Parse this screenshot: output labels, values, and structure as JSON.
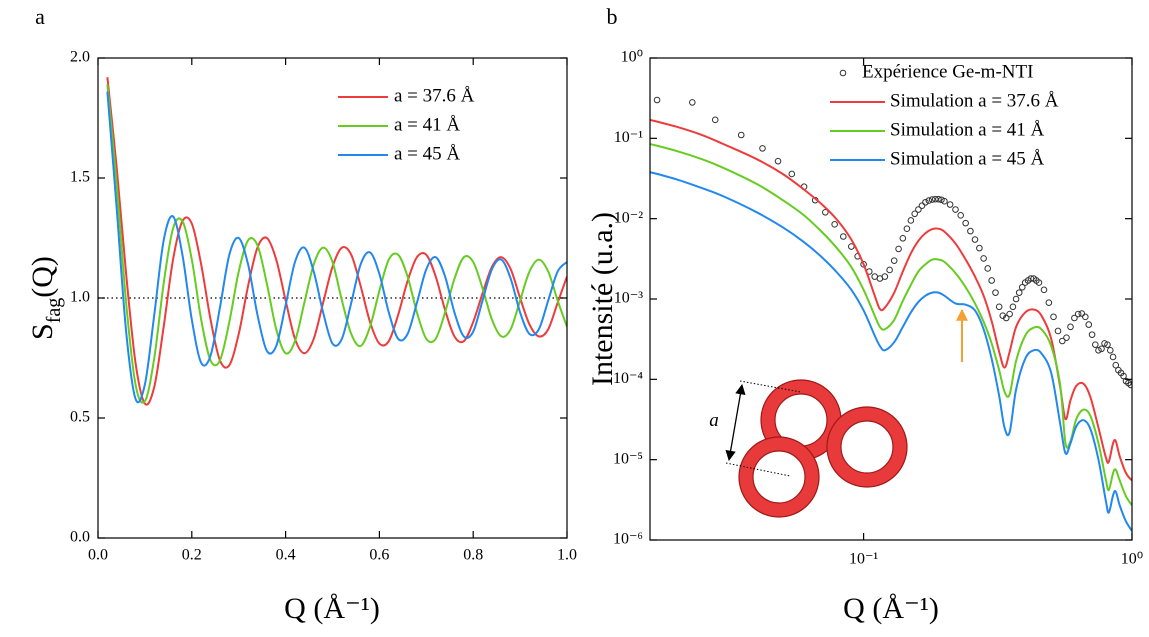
{
  "chart_data": [
    {
      "type": "line",
      "panel_label": "a",
      "ylabel": "S",
      "ylabel_sub": "fag",
      "ylabel_end": "(Q)",
      "xlabel": "Q (Å⁻¹)",
      "xlim": [
        0,
        1
      ],
      "ylim": [
        0,
        2
      ],
      "xticks": [
        {
          "value": 0,
          "label": "0.0"
        },
        {
          "value": 0.2,
          "label": "0.2"
        },
        {
          "value": 0.4,
          "label": "0.4"
        },
        {
          "value": 0.6,
          "label": "0.6"
        },
        {
          "value": 0.8,
          "label": "0.8"
        },
        {
          "value": 1,
          "label": "1.0"
        }
      ],
      "yticks": [
        {
          "value": 0,
          "label": "0.0"
        },
        {
          "value": 0.5,
          "label": "0.5"
        },
        {
          "value": 1,
          "label": "1.0"
        },
        {
          "value": 1.5,
          "label": "1.5"
        },
        {
          "value": 2,
          "label": "2.0"
        }
      ],
      "hline": 1,
      "legend": "upper right",
      "x": [
        0.02,
        0.04,
        0.06,
        0.08,
        0.1,
        0.12,
        0.14,
        0.16,
        0.18,
        0.2,
        0.22,
        0.24,
        0.26,
        0.28,
        0.3,
        0.32,
        0.34,
        0.36,
        0.38,
        0.4,
        0.42,
        0.44,
        0.46,
        0.48,
        0.5,
        0.52,
        0.54,
        0.56,
        0.58,
        0.6,
        0.62,
        0.64,
        0.66,
        0.68,
        0.7,
        0.72,
        0.74,
        0.76,
        0.78,
        0.8,
        0.82,
        0.84,
        0.86,
        0.88,
        0.9,
        0.92,
        0.94,
        0.96,
        0.98,
        1.0
      ],
      "series": [
        {
          "name": "a = 37.6 Å",
          "color": "#ee3b3b",
          "values": [
            1.92,
            1.54,
            1.1,
            0.73,
            0.56,
            0.63,
            0.88,
            1.16,
            1.32,
            1.31,
            1.14,
            0.91,
            0.74,
            0.72,
            0.85,
            1.05,
            1.21,
            1.25,
            1.16,
            0.99,
            0.83,
            0.77,
            0.83,
            0.98,
            1.13,
            1.21,
            1.18,
            1.05,
            0.9,
            0.81,
            0.82,
            0.93,
            1.07,
            1.17,
            1.18,
            1.09,
            0.95,
            0.84,
            0.82,
            0.9,
            1.02,
            1.13,
            1.17,
            1.12,
            1.0,
            0.89,
            0.84,
            0.87,
            0.98,
            1.09
          ]
        },
        {
          "name": "a = 41 Å",
          "color": "#66cc22",
          "values": [
            1.89,
            1.47,
            0.98,
            0.64,
            0.57,
            0.75,
            1.06,
            1.29,
            1.32,
            1.16,
            0.91,
            0.74,
            0.74,
            0.9,
            1.11,
            1.24,
            1.22,
            1.06,
            0.87,
            0.77,
            0.82,
            0.98,
            1.14,
            1.21,
            1.15,
            0.99,
            0.85,
            0.8,
            0.88,
            1.03,
            1.16,
            1.18,
            1.09,
            0.94,
            0.83,
            0.83,
            0.94,
            1.08,
            1.17,
            1.15,
            1.04,
            0.91,
            0.84,
            0.87,
            0.99,
            1.11,
            1.16,
            1.11,
            0.99,
            0.88
          ]
        },
        {
          "name": "a = 45 Å",
          "color": "#2288ee",
          "values": [
            1.86,
            1.37,
            0.86,
            0.58,
            0.64,
            0.93,
            1.24,
            1.34,
            1.18,
            0.91,
            0.73,
            0.76,
            0.96,
            1.18,
            1.25,
            1.14,
            0.93,
            0.78,
            0.8,
            0.97,
            1.15,
            1.21,
            1.11,
            0.94,
            0.81,
            0.83,
            0.98,
            1.14,
            1.19,
            1.1,
            0.94,
            0.83,
            0.85,
            0.98,
            1.12,
            1.17,
            1.09,
            0.94,
            0.84,
            0.86,
            0.99,
            1.12,
            1.16,
            1.08,
            0.94,
            0.85,
            0.87,
            0.99,
            1.11,
            1.15
          ]
        }
      ]
    },
    {
      "type": "line",
      "panel_label": "b",
      "ylabel": "Intensité (u.a.)",
      "xlabel": "Q (Å⁻¹)",
      "xscale": "log",
      "yscale": "log",
      "xlim": [
        0.016,
        1
      ],
      "ylim": [
        1e-06,
        1
      ],
      "xticks": [
        {
          "value": 0.1,
          "label": "10⁻¹"
        },
        {
          "value": 1,
          "label": "10⁰"
        }
      ],
      "yticks": [
        {
          "value": 1e-06,
          "label": "10⁻⁶"
        },
        {
          "value": 1e-05,
          "label": "10⁻⁵"
        },
        {
          "value": 0.0001,
          "label": "10⁻⁴"
        },
        {
          "value": 0.001,
          "label": "10⁻³"
        },
        {
          "value": 0.01,
          "label": "10⁻²"
        },
        {
          "value": 0.1,
          "label": "10⁻¹"
        },
        {
          "value": 1,
          "label": "10⁰"
        }
      ],
      "legend": "upper right",
      "diagram_label": "a",
      "x": [
        0.016,
        0.02,
        0.025,
        0.03,
        0.04,
        0.05,
        0.06,
        0.07,
        0.08,
        0.09,
        0.1,
        0.11,
        0.115,
        0.12,
        0.13,
        0.14,
        0.15,
        0.16,
        0.17,
        0.18,
        0.19,
        0.2,
        0.22,
        0.24,
        0.26,
        0.28,
        0.3,
        0.32,
        0.335,
        0.35,
        0.37,
        0.4,
        0.43,
        0.46,
        0.5,
        0.54,
        0.565,
        0.59,
        0.62,
        0.66,
        0.7,
        0.75,
        0.8,
        0.82,
        0.85,
        0.87,
        0.9,
        0.95,
        1.0
      ],
      "series": [
        {
          "name": "Expérience Ge-m-NTI",
          "type": "scatter",
          "color": "#333333",
          "x": [
            0.017,
            0.023,
            0.028,
            0.035,
            0.042,
            0.048,
            0.054,
            0.06,
            0.066,
            0.072,
            0.078,
            0.084,
            0.09,
            0.095,
            0.1,
            0.105,
            0.11,
            0.115,
            0.12,
            0.125,
            0.13,
            0.135,
            0.14,
            0.145,
            0.15,
            0.155,
            0.16,
            0.165,
            0.17,
            0.175,
            0.18,
            0.185,
            0.19,
            0.195,
            0.2,
            0.21,
            0.22,
            0.23,
            0.24,
            0.25,
            0.26,
            0.27,
            0.28,
            0.29,
            0.3,
            0.31,
            0.32,
            0.33,
            0.34,
            0.35,
            0.36,
            0.37,
            0.38,
            0.39,
            0.4,
            0.41,
            0.42,
            0.43,
            0.44,
            0.45,
            0.47,
            0.49,
            0.51,
            0.53,
            0.55,
            0.57,
            0.59,
            0.61,
            0.63,
            0.65,
            0.67,
            0.69,
            0.71,
            0.73,
            0.75,
            0.77,
            0.79,
            0.81,
            0.83,
            0.85,
            0.87,
            0.89,
            0.91,
            0.93,
            0.95,
            0.97,
            0.99
          ],
          "values": [
            0.3,
            0.28,
            0.17,
            0.11,
            0.075,
            0.052,
            0.036,
            0.025,
            0.017,
            0.012,
            0.0085,
            0.006,
            0.0045,
            0.0034,
            0.0027,
            0.0022,
            0.0019,
            0.0018,
            0.0019,
            0.0023,
            0.003,
            0.0042,
            0.0057,
            0.0075,
            0.0095,
            0.0115,
            0.013,
            0.0145,
            0.016,
            0.0168,
            0.0173,
            0.0175,
            0.0175,
            0.0172,
            0.0165,
            0.015,
            0.013,
            0.011,
            0.0088,
            0.007,
            0.0055,
            0.0043,
            0.0032,
            0.0024,
            0.0017,
            0.0012,
            0.0008,
            0.00062,
            0.00058,
            0.00065,
            0.0008,
            0.001,
            0.0012,
            0.0014,
            0.0016,
            0.0017,
            0.0018,
            0.0018,
            0.0017,
            0.0016,
            0.0013,
            0.0009,
            0.0006,
            0.0004,
            0.0003,
            0.00033,
            0.00045,
            0.00058,
            0.00065,
            0.00066,
            0.0006,
            0.00048,
            0.00036,
            0.00027,
            0.00023,
            0.00024,
            0.00028,
            0.00027,
            0.00023,
            0.00019,
            0.00015,
            0.00013,
            0.00012,
            0.00011,
            9.5e-05,
            9e-05,
            8.5e-05
          ]
        },
        {
          "name": "Simulation a = 37.6 Å",
          "color": "#ee3b3b",
          "values": [
            0.17,
            0.14,
            0.11,
            0.085,
            0.055,
            0.036,
            0.023,
            0.015,
            0.0095,
            0.0055,
            0.0027,
            0.0011,
            0.00075,
            0.00078,
            0.0012,
            0.0022,
            0.0037,
            0.0053,
            0.0066,
            0.0074,
            0.0075,
            0.0069,
            0.0049,
            0.0031,
            0.0019,
            0.0011,
            0.00053,
            0.00022,
            0.00014,
            0.00022,
            0.00045,
            0.00068,
            0.00074,
            0.00062,
            0.00032,
            8e-05,
            3.2e-05,
            5.5e-05,
            8.3e-05,
            8.8e-05,
            6e-05,
            2.5e-05,
            1.05e-05,
            9.5e-06,
            1.6e-05,
            1.7e-05,
            1.1e-05,
            6.8e-06,
            5.5e-06
          ]
        },
        {
          "name": "Simulation a = 41 Å",
          "color": "#66cc22",
          "values": [
            0.085,
            0.07,
            0.055,
            0.043,
            0.027,
            0.017,
            0.011,
            0.0068,
            0.0042,
            0.0025,
            0.0013,
            0.00062,
            0.00045,
            0.00042,
            0.00055,
            0.00095,
            0.0015,
            0.0022,
            0.0027,
            0.0031,
            0.0031,
            0.0029,
            0.0021,
            0.0014,
            0.00088,
            0.00052,
            0.00028,
            0.00013,
            7e-05,
            6.5e-05,
            0.00017,
            0.00035,
            0.00044,
            0.00042,
            0.00026,
            8.5e-05,
            1.6e-05,
            1.7e-05,
            3.2e-05,
            4.2e-05,
            3.5e-05,
            1.6e-05,
            5.5e-06,
            4.2e-06,
            6.8e-06,
            7.5e-06,
            5.5e-06,
            3.5e-06,
            2.7e-06
          ]
        },
        {
          "name": "Simulation a = 45 Å",
          "color": "#2288ee",
          "values": [
            0.038,
            0.031,
            0.024,
            0.019,
            0.012,
            0.0078,
            0.0051,
            0.0033,
            0.0021,
            0.0013,
            0.00072,
            0.00035,
            0.00026,
            0.00023,
            0.00029,
            0.00045,
            0.00068,
            0.00092,
            0.0011,
            0.0012,
            0.0012,
            0.0011,
            0.00088,
            0.00085,
            0.00072,
            0.00042,
            0.00018,
            6.2e-05,
            2.5e-05,
            2.2e-05,
            7.5e-05,
            0.00018,
            0.00023,
            0.00021,
            0.00012,
            2.8e-05,
            1.2e-05,
            1.6e-05,
            2.6e-05,
            3.1e-05,
            2.4e-05,
            1e-05,
            3e-06,
            2.2e-06,
            3.6e-06,
            4e-06,
            2.7e-06,
            1.7e-06,
            1.3e-06
          ]
        }
      ]
    }
  ]
}
